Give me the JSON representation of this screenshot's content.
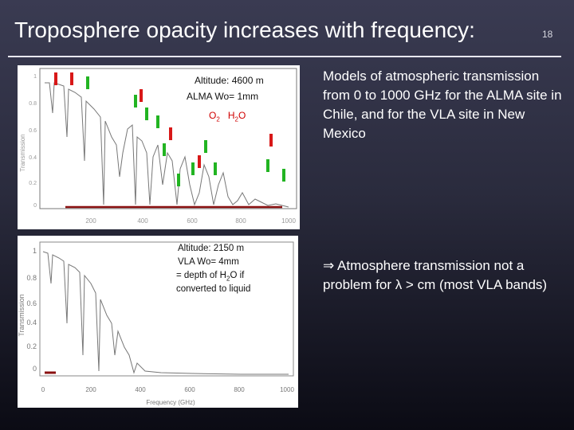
{
  "slide": {
    "title": "Troposphere opacity increases with frequency:",
    "number": "18"
  },
  "alma_plot": {
    "alt": "Altitude: 4600 m",
    "wo": "ALMA Wo= 1mm",
    "o2": "O",
    "o2_sub": "2",
    "h2o_h": "H",
    "h2o_sub": "2",
    "h2o_o": "O",
    "ylabel": "Transmission",
    "yticks": [
      "1",
      "0.8",
      "0.6",
      "0.4",
      "0.2",
      "0"
    ],
    "xticks": [
      "200",
      "400",
      "600",
      "800",
      "1000"
    ],
    "marker_colors": {
      "o2": "#d81818",
      "h2o": "#22b422"
    }
  },
  "vla_plot": {
    "line1": "Altitude: 2150 m",
    "line2": "VLA Wo= 4mm",
    "line3a": "= depth of H",
    "line3sub": "2",
    "line3b": "O if",
    "line4": "converted to liquid",
    "ylabel": "Transmission",
    "xlabel": "Frequency (GHz)",
    "yticks": [
      "1",
      "0.8",
      "0.6",
      "0.4",
      "0.2",
      "0"
    ],
    "xticks": [
      "0",
      "200",
      "400",
      "600",
      "800",
      "1000"
    ]
  },
  "text": {
    "p1": "Models of atmospheric transmission from 0 to 1000 GHz for the ALMA site in Chile, and for the VLA site in New Mexico",
    "arrow": "⇒",
    "p2a": " Atmosphere transmission not a problem for ",
    "lambda": "λ",
    "p2b": " > cm (most VLA bands)"
  }
}
